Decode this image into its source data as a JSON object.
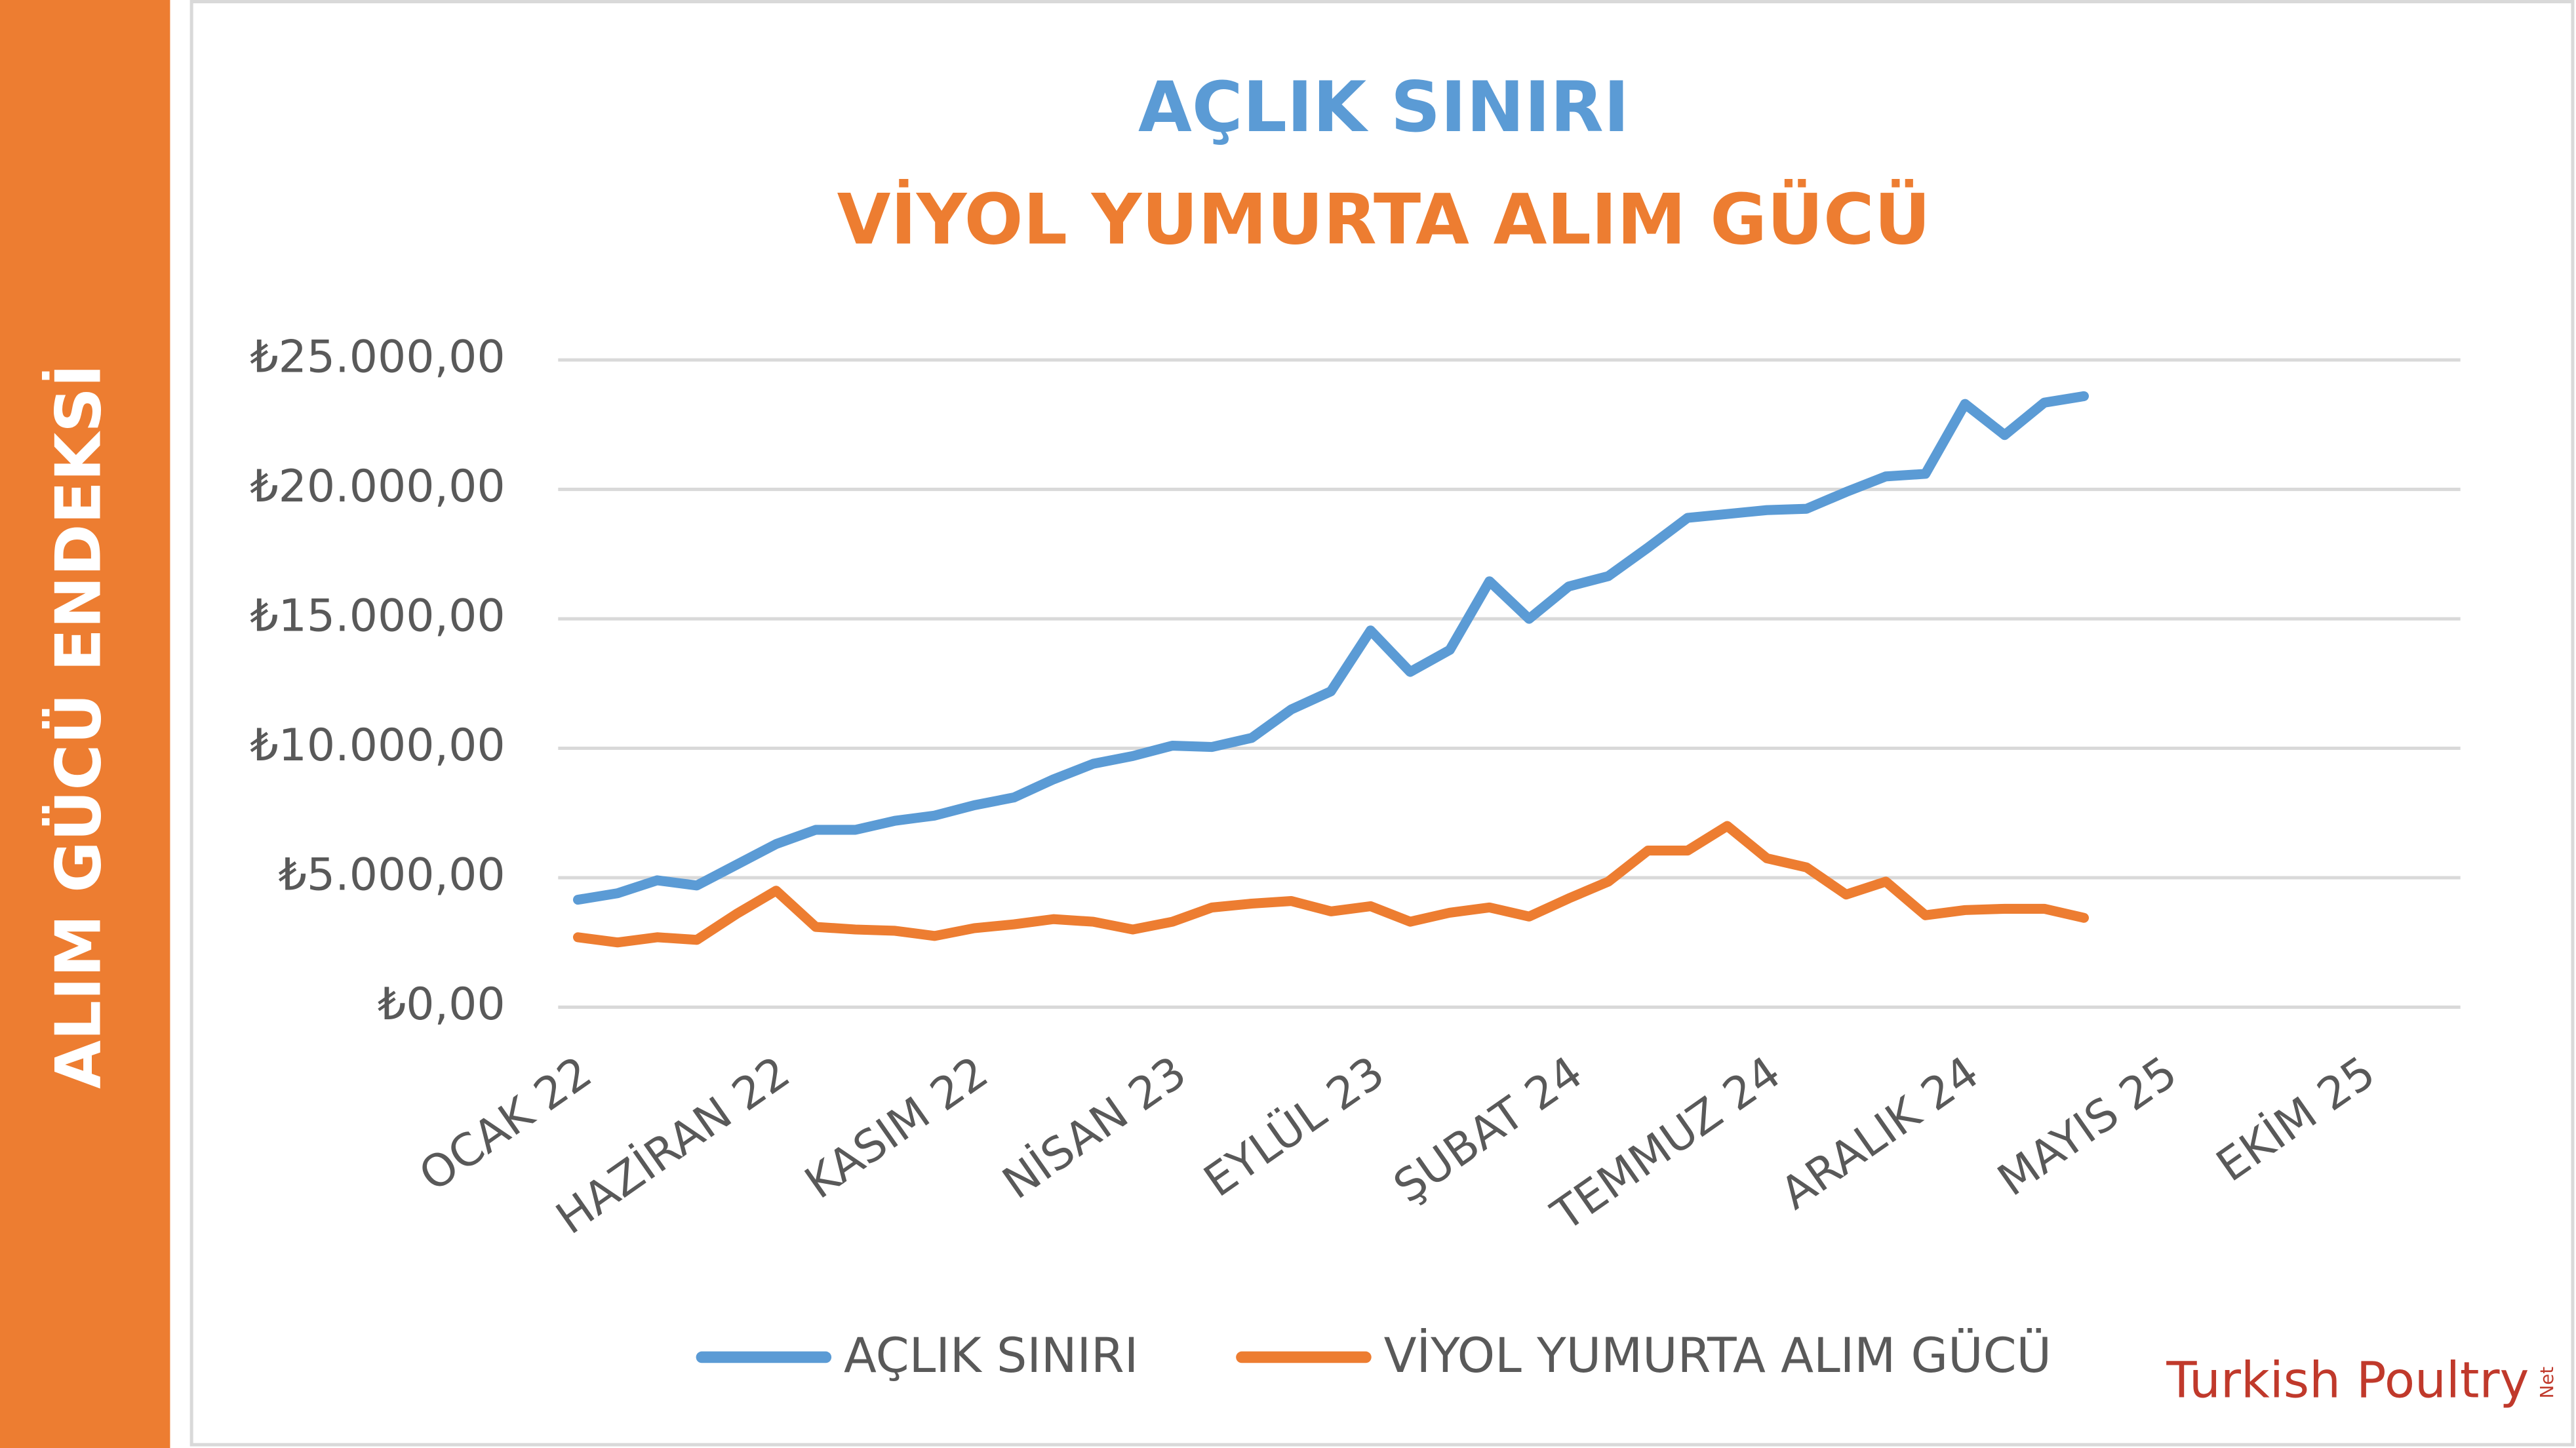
{
  "side_label": "ALIM GÜCÜ ENDEKSİ",
  "logo": {
    "text": "Turkish Poultry",
    "suffix": "Net"
  },
  "chart_data": {
    "type": "line",
    "title": "AÇLIK SINIRI",
    "title_color": "#5b9bd5",
    "subtitle": "VİYOL YUMURTA ALIM GÜCÜ",
    "subtitle_color": "#ed7d31",
    "categories": [
      "OCAK 22",
      null,
      null,
      null,
      null,
      "HAZİRAN 22",
      null,
      null,
      null,
      null,
      "KASIM 22",
      null,
      null,
      null,
      null,
      "NİSAN 23",
      null,
      null,
      null,
      null,
      "EYLÜL 23",
      null,
      null,
      null,
      null,
      "ŞUBAT 24",
      null,
      null,
      null,
      null,
      "TEMMUZ 24",
      null,
      null,
      null,
      null,
      "ARALIK 24",
      null,
      null,
      null,
      null,
      "MAYIS 25",
      null,
      null,
      null,
      null,
      "EKİM 25",
      null,
      null
    ],
    "series": [
      {
        "name": "AÇLIK SINIRI",
        "color": "#5b9bd5",
        "values": [
          4150,
          4400,
          4900,
          4700,
          5500,
          6300,
          6850,
          6850,
          7200,
          7400,
          7800,
          8100,
          8800,
          9400,
          9700,
          10100,
          10050,
          10400,
          11500,
          12200,
          14550,
          12950,
          13800,
          16450,
          15000,
          16250,
          16650,
          17750,
          18900,
          19050,
          19200,
          19250,
          19900,
          20500,
          20600,
          23300,
          22100,
          23350,
          23600,
          null,
          null,
          null,
          null,
          null,
          null,
          null,
          null,
          null
        ]
      },
      {
        "name": "VİYOL YUMURTA ALIM GÜCÜ",
        "color": "#ed7d31",
        "values": [
          2700,
          2500,
          2700,
          2600,
          3600,
          4500,
          3100,
          3000,
          2950,
          2750,
          3050,
          3200,
          3400,
          3300,
          3000,
          3300,
          3850,
          4000,
          4100,
          3700,
          3900,
          3300,
          3650,
          3850,
          3500,
          4200,
          4850,
          6050,
          6050,
          7000,
          5750,
          5400,
          4350,
          4850,
          3550,
          3750,
          3800,
          3800,
          3450,
          null,
          null,
          null,
          null,
          null,
          null,
          null,
          null,
          null
        ]
      }
    ],
    "ylim": [
      0,
      25000
    ],
    "yticks": [
      {
        "value": 0,
        "label": "₺0,00"
      },
      {
        "value": 5000,
        "label": "₺5.000,00"
      },
      {
        "value": 10000,
        "label": "₺10.000,00"
      },
      {
        "value": 15000,
        "label": "₺15.000,00"
      },
      {
        "value": 20000,
        "label": "₺20.000,00"
      },
      {
        "value": 25000,
        "label": "₺25.000,00"
      }
    ],
    "grid": true,
    "legend": "bottom"
  }
}
